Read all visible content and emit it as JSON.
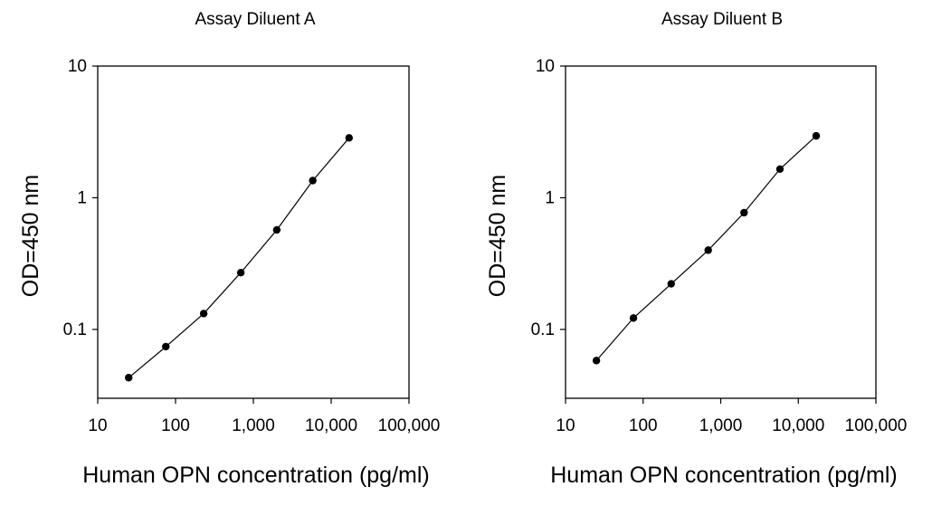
{
  "chart_data": [
    {
      "type": "line",
      "title": "Assay Diluent A",
      "xlabel": "Human OPN concentration (pg/ml)",
      "ylabel": "OD=450 nm",
      "xscale": "log",
      "yscale": "log",
      "xlim": [
        10,
        100000
      ],
      "ylim": [
        0.03,
        10
      ],
      "xticks": [
        10,
        100,
        1000,
        10000,
        100000
      ],
      "xtick_labels": [
        "10",
        "100",
        "1,000",
        "10,000",
        "100,000"
      ],
      "yticks": [
        0.1,
        1,
        10
      ],
      "ytick_labels": [
        "0.1",
        "1",
        "10"
      ],
      "grid": false,
      "series": [
        {
          "x": [
            25,
            75,
            230,
            690,
            2000,
            5800,
            17000
          ],
          "y": [
            0.043,
            0.074,
            0.132,
            0.27,
            0.57,
            1.35,
            2.85
          ]
        }
      ]
    },
    {
      "type": "line",
      "title": "Assay Diluent B",
      "xlabel": "Human OPN concentration (pg/ml)",
      "ylabel": "OD=450 nm",
      "xscale": "log",
      "yscale": "log",
      "xlim": [
        10,
        100000
      ],
      "ylim": [
        0.03,
        10
      ],
      "xticks": [
        10,
        100,
        1000,
        10000,
        100000
      ],
      "xtick_labels": [
        "10",
        "100",
        "1,000",
        "10,000",
        "100,000"
      ],
      "yticks": [
        0.1,
        1,
        10
      ],
      "ytick_labels": [
        "0.1",
        "1",
        "10"
      ],
      "grid": false,
      "series": [
        {
          "x": [
            25,
            75,
            230,
            690,
            2000,
            5800,
            17000
          ],
          "y": [
            0.058,
            0.122,
            0.222,
            0.4,
            0.77,
            1.65,
            2.95
          ]
        }
      ]
    }
  ]
}
